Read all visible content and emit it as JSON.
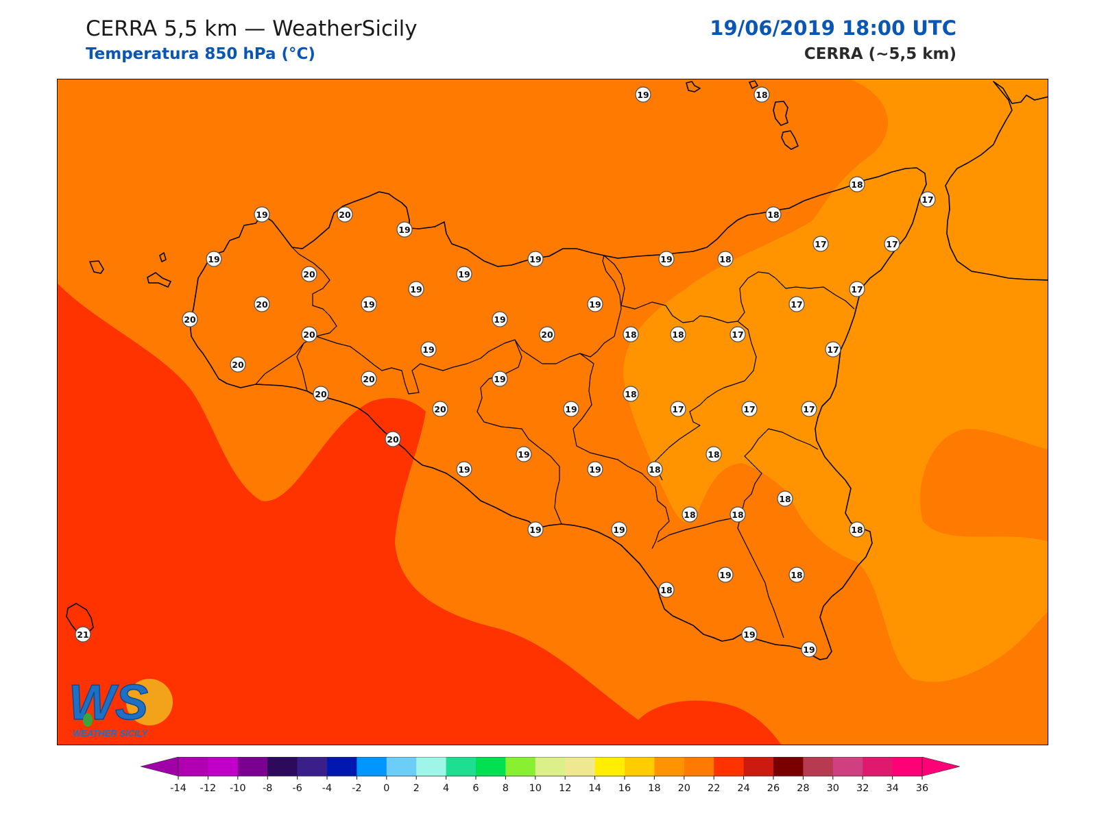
{
  "header": {
    "title": "CERRA 5,5 km — WeatherSicily",
    "subtitle": "Temperatura 850 hPa (°C)",
    "datetime": "19/06/2019 18:00 UTC",
    "model": "CERRA (~5,5 km)"
  },
  "colors": {
    "t17_18": "#ff9400",
    "t18_20": "#ff7a00",
    "t20_22": "#ff3300",
    "land_outline": "#000000",
    "accent_blue": "#0a56b5"
  },
  "stations": [
    {
      "v": "19",
      "c": [
        937,
        137
      ]
    },
    {
      "v": "18",
      "c": [
        1110,
        137
      ]
    },
    {
      "v": "18",
      "c": [
        1249,
        268
      ]
    },
    {
      "v": "17",
      "c": [
        1352,
        290
      ]
    },
    {
      "v": "19",
      "c": [
        381,
        312
      ]
    },
    {
      "v": "20",
      "c": [
        502,
        312
      ]
    },
    {
      "v": "19",
      "c": [
        589,
        334
      ]
    },
    {
      "v": "18",
      "c": [
        1127,
        312
      ]
    },
    {
      "v": "17",
      "c": [
        1196,
        355
      ]
    },
    {
      "v": "17",
      "c": [
        1300,
        355
      ]
    },
    {
      "v": "19",
      "c": [
        311,
        377
      ]
    },
    {
      "v": "20",
      "c": [
        450,
        399
      ]
    },
    {
      "v": "19",
      "c": [
        676,
        399
      ]
    },
    {
      "v": "19",
      "c": [
        780,
        377
      ]
    },
    {
      "v": "19",
      "c": [
        971,
        377
      ]
    },
    {
      "v": "18",
      "c": [
        1057,
        377
      ]
    },
    {
      "v": "20",
      "c": [
        381,
        443
      ]
    },
    {
      "v": "19",
      "c": [
        537,
        443
      ]
    },
    {
      "v": "19",
      "c": [
        606,
        421
      ]
    },
    {
      "v": "19",
      "c": [
        867,
        443
      ]
    },
    {
      "v": "17",
      "c": [
        1161,
        443
      ]
    },
    {
      "v": "17",
      "c": [
        1249,
        421
      ]
    },
    {
      "v": "20",
      "c": [
        276,
        465
      ]
    },
    {
      "v": "20",
      "c": [
        450,
        487
      ]
    },
    {
      "v": "19",
      "c": [
        728,
        465
      ]
    },
    {
      "v": "20",
      "c": [
        797,
        487
      ]
    },
    {
      "v": "18",
      "c": [
        919,
        487
      ]
    },
    {
      "v": "18",
      "c": [
        988,
        487
      ]
    },
    {
      "v": "17",
      "c": [
        1075,
        487
      ]
    },
    {
      "v": "17",
      "c": [
        1214,
        509
      ]
    },
    {
      "v": "20",
      "c": [
        346,
        531
      ]
    },
    {
      "v": "19",
      "c": [
        624,
        509
      ]
    },
    {
      "v": "20",
      "c": [
        537,
        552
      ]
    },
    {
      "v": "19",
      "c": [
        728,
        552
      ]
    },
    {
      "v": "20",
      "c": [
        467,
        574
      ]
    },
    {
      "v": "20",
      "c": [
        641,
        596
      ]
    },
    {
      "v": "19",
      "c": [
        832,
        596
      ]
    },
    {
      "v": "18",
      "c": [
        919,
        574
      ]
    },
    {
      "v": "17",
      "c": [
        988,
        596
      ]
    },
    {
      "v": "17",
      "c": [
        1092,
        596
      ]
    },
    {
      "v": "17",
      "c": [
        1179,
        596
      ]
    },
    {
      "v": "20",
      "c": [
        572,
        640
      ]
    },
    {
      "v": "19",
      "c": [
        763,
        662
      ]
    },
    {
      "v": "18",
      "c": [
        1040,
        662
      ]
    },
    {
      "v": "19",
      "c": [
        676,
        684
      ]
    },
    {
      "v": "19",
      "c": [
        867,
        684
      ]
    },
    {
      "v": "18",
      "c": [
        954,
        684
      ]
    },
    {
      "v": "18",
      "c": [
        1144,
        727
      ]
    },
    {
      "v": "18",
      "c": [
        1005,
        750
      ]
    },
    {
      "v": "18",
      "c": [
        1075,
        750
      ]
    },
    {
      "v": "19",
      "c": [
        780,
        772
      ]
    },
    {
      "v": "19",
      "c": [
        902,
        772
      ]
    },
    {
      "v": "18",
      "c": [
        1249,
        772
      ]
    },
    {
      "v": "19",
      "c": [
        1057,
        838
      ]
    },
    {
      "v": "18",
      "c": [
        1161,
        838
      ]
    },
    {
      "v": "18",
      "c": [
        971,
        860
      ]
    },
    {
      "v": "21",
      "c": [
        120,
        925
      ]
    },
    {
      "v": "19",
      "c": [
        1092,
        925
      ]
    },
    {
      "v": "19",
      "c": [
        1179,
        947
      ]
    }
  ],
  "colorbar": {
    "ticks": [
      "-14",
      "-12",
      "-10",
      "-8",
      "-6",
      "-4",
      "-2",
      "0",
      "2",
      "4",
      "6",
      "8",
      "10",
      "12",
      "14",
      "16",
      "18",
      "20",
      "22",
      "24",
      "26",
      "28",
      "30",
      "32",
      "34",
      "36"
    ],
    "colors": [
      "#b000b0",
      "#c000c8",
      "#7a0090",
      "#2e0a5c",
      "#3b1f88",
      "#0018b0",
      "#0096ff",
      "#6ccdf6",
      "#9ef5e8",
      "#1ede92",
      "#00e050",
      "#88f030",
      "#dcf08a",
      "#f0e890",
      "#ffee00",
      "#ffcc00",
      "#ff9400",
      "#ff7a00",
      "#ff3300",
      "#cc1a10",
      "#7a0000",
      "#b83a50",
      "#d04080",
      "#e0186e",
      "#ff0077"
    ],
    "under_color": "#a000a8",
    "over_color": "#ff0077"
  },
  "logo": {
    "letters": "WS",
    "brand": "WEATHER SICILY"
  }
}
